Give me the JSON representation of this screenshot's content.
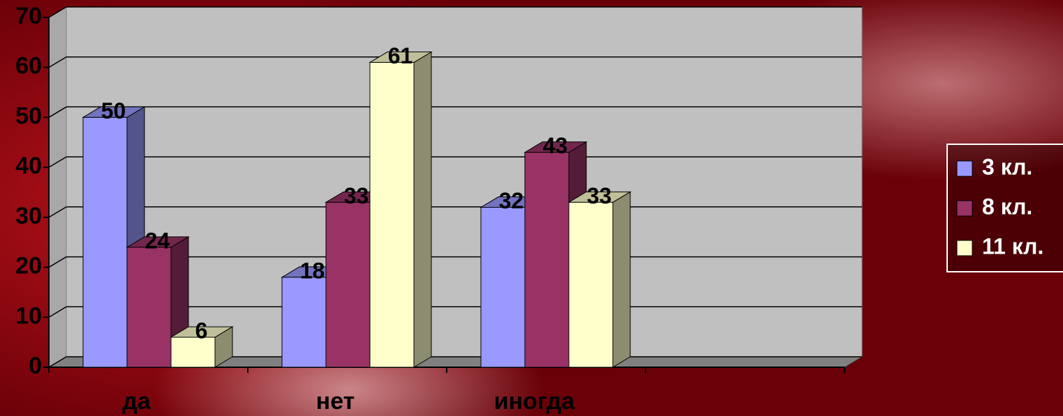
{
  "chart_data": {
    "type": "bar3d",
    "categories": [
      "да",
      "нет",
      "иногда",
      null
    ],
    "series": [
      {
        "name": "3 кл.",
        "color": "#9999ff",
        "values": [
          50,
          18,
          32,
          null
        ]
      },
      {
        "name": "8 кл.",
        "color": "#993366",
        "values": [
          24,
          33,
          43,
          null
        ]
      },
      {
        "name": "11 кл.",
        "color": "#ffffcc",
        "values": [
          6,
          61,
          33,
          null
        ]
      }
    ],
    "ylim": [
      0,
      70
    ],
    "yticks": [
      0,
      10,
      20,
      30,
      40,
      50,
      60,
      70
    ],
    "grid": true,
    "legend": "right"
  }
}
